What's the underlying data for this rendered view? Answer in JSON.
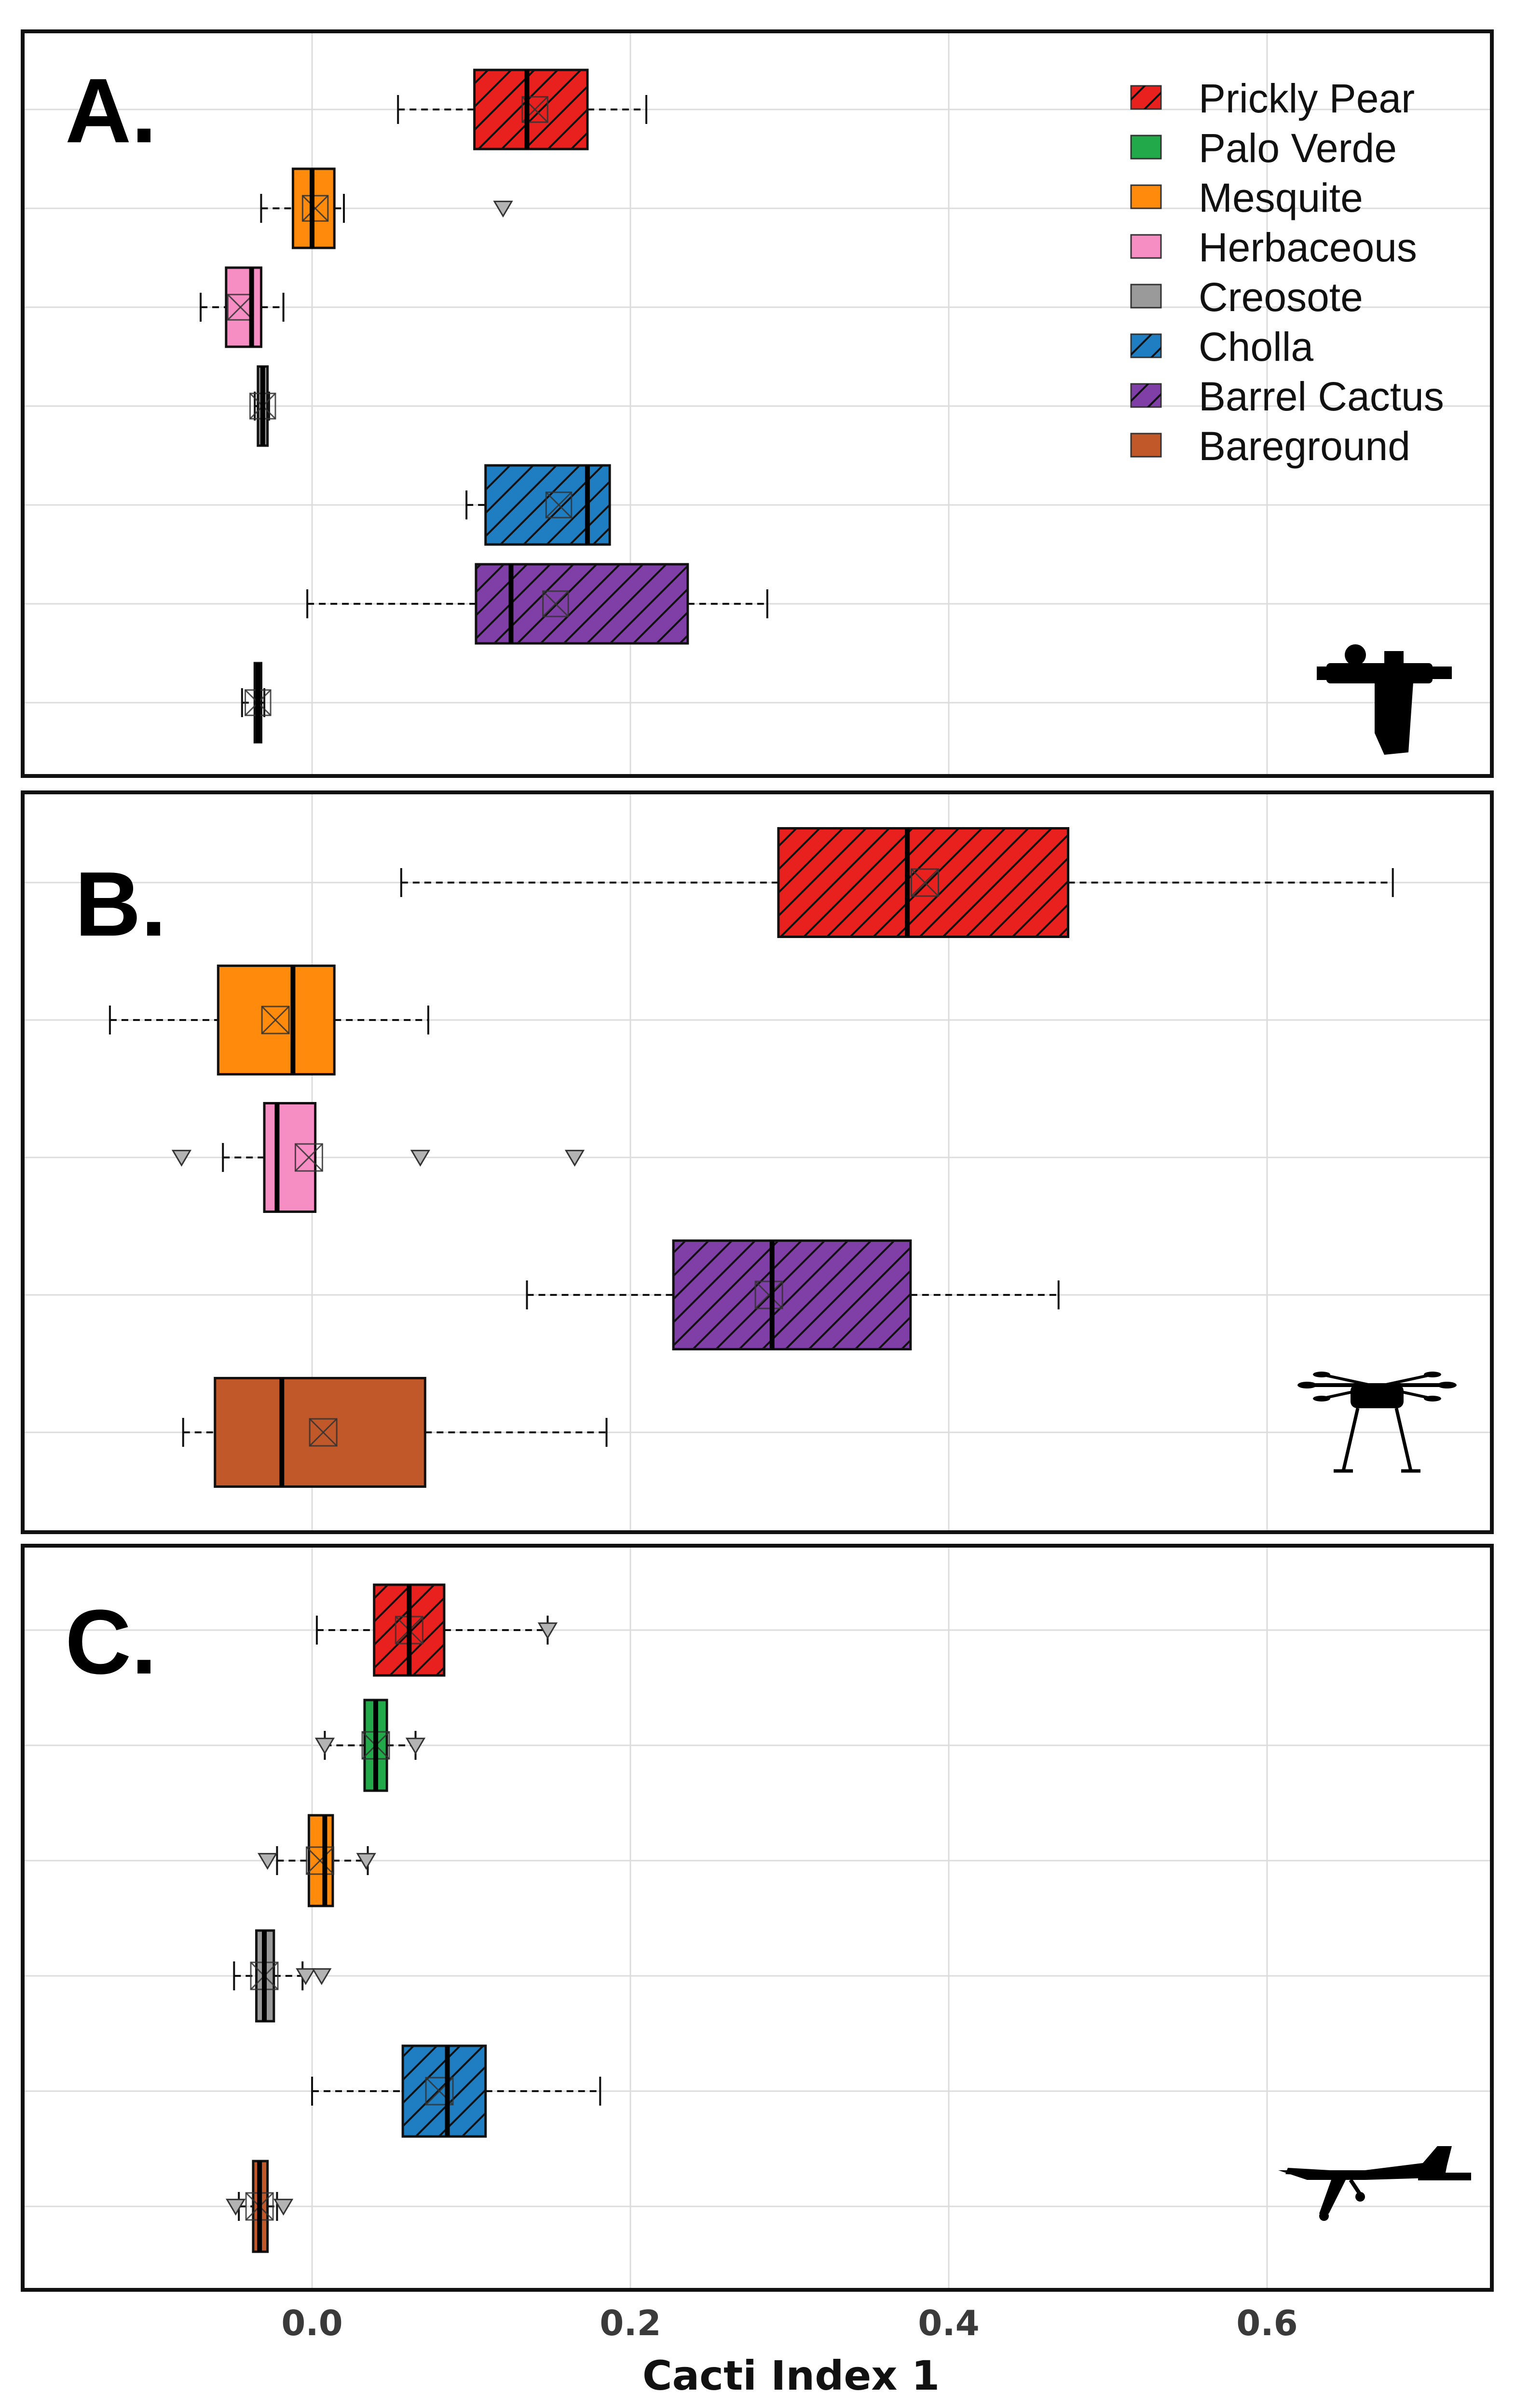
{
  "chart_data": {
    "type": "boxplot",
    "xlabel": "Cacti Index 1",
    "xlim": [
      -0.18,
      0.73
    ],
    "x_ticks": [
      {
        "value": 0.0,
        "label": "0.0"
      },
      {
        "value": 0.2,
        "label": "0.2"
      },
      {
        "value": 0.4,
        "label": "0.4"
      },
      {
        "value": 0.6,
        "label": "0.6"
      }
    ],
    "grid": true,
    "legend": {
      "placement": "top-right",
      "entries": [
        {
          "name": "Prickly Pear",
          "color": "#e8201e",
          "hatched": true
        },
        {
          "name": "Palo Verde",
          "color": "#22aa4a",
          "hatched": false
        },
        {
          "name": "Mesquite",
          "color": "#ff8a0c",
          "hatched": false
        },
        {
          "name": "Herbaceous",
          "color": "#f78ec3",
          "hatched": false
        },
        {
          "name": "Creosote",
          "color": "#9a9a9a",
          "hatched": false
        },
        {
          "name": "Cholla",
          "color": "#1f7ec1",
          "hatched": true
        },
        {
          "name": "Barrel Cactus",
          "color": "#7f3fa6",
          "hatched": true
        },
        {
          "name": "Bareground",
          "color": "#c0582a",
          "hatched": false
        }
      ]
    },
    "panels": [
      {
        "label": "A.",
        "platform_icon": "handheld-spectrometer-icon",
        "series": [
          {
            "name": "Prickly Pear",
            "whisker_low": 0.054,
            "q1": 0.102,
            "median": 0.135,
            "q3": 0.173,
            "whisker_high": 0.21,
            "mean": 0.14,
            "outliers": []
          },
          {
            "name": "Mesquite",
            "whisker_low": -0.032,
            "q1": -0.012,
            "median": 0.0,
            "q3": 0.014,
            "whisker_high": 0.02,
            "mean": 0.002,
            "outliers": [
              0.12
            ]
          },
          {
            "name": "Herbaceous",
            "whisker_low": -0.07,
            "q1": -0.054,
            "median": -0.038,
            "q3": -0.032,
            "whisker_high": -0.018,
            "mean": -0.045,
            "outliers": []
          },
          {
            "name": "Creosote",
            "whisker_low": -0.036,
            "q1": -0.034,
            "median": -0.031,
            "q3": -0.028,
            "whisker_high": -0.027,
            "mean": -0.031,
            "outliers": []
          },
          {
            "name": "Cholla",
            "whisker_low": 0.097,
            "q1": 0.109,
            "median": 0.173,
            "q3": 0.187,
            "whisker_high": 0.187,
            "mean": 0.155,
            "outliers": []
          },
          {
            "name": "Barrel Cactus",
            "whisker_low": -0.003,
            "q1": 0.103,
            "median": 0.125,
            "q3": 0.236,
            "whisker_high": 0.286,
            "mean": 0.153,
            "outliers": []
          },
          {
            "name": "Bareground",
            "whisker_low": -0.044,
            "q1": -0.036,
            "median": -0.034,
            "q3": -0.032,
            "whisker_high": -0.03,
            "mean": -0.034,
            "outliers": []
          }
        ]
      },
      {
        "label": "B.",
        "platform_icon": "drone-icon",
        "series": [
          {
            "name": "Prickly Pear",
            "whisker_low": 0.056,
            "q1": 0.293,
            "median": 0.374,
            "q3": 0.475,
            "whisker_high": 0.679,
            "mean": 0.385,
            "outliers": []
          },
          {
            "name": "Mesquite",
            "whisker_low": -0.127,
            "q1": -0.059,
            "median": -0.012,
            "q3": 0.014,
            "whisker_high": 0.073,
            "mean": -0.023,
            "outliers": []
          },
          {
            "name": "Herbaceous",
            "whisker_low": -0.056,
            "q1": -0.03,
            "median": -0.022,
            "q3": 0.002,
            "whisker_high": 0.002,
            "mean": -0.002,
            "outliers": [
              -0.082,
              0.068,
              0.165
            ]
          },
          {
            "name": "Barrel Cactus",
            "whisker_low": 0.135,
            "q1": 0.227,
            "median": 0.289,
            "q3": 0.376,
            "whisker_high": 0.469,
            "mean": 0.287,
            "outliers": []
          },
          {
            "name": "Bareground",
            "whisker_low": -0.081,
            "q1": -0.061,
            "median": -0.019,
            "q3": 0.071,
            "whisker_high": 0.185,
            "mean": 0.007,
            "outliers": []
          }
        ]
      },
      {
        "label": "C.",
        "platform_icon": "airplane-icon",
        "series": [
          {
            "name": "Prickly Pear",
            "whisker_low": 0.003,
            "q1": 0.039,
            "median": 0.061,
            "q3": 0.083,
            "whisker_high": 0.148,
            "mean": 0.061,
            "outliers": [
              0.148
            ]
          },
          {
            "name": "Palo Verde",
            "whisker_low": 0.008,
            "q1": 0.033,
            "median": 0.04,
            "q3": 0.047,
            "whisker_high": 0.065,
            "mean": 0.04,
            "outliers": [
              0.008,
              0.065
            ]
          },
          {
            "name": "Mesquite",
            "whisker_low": -0.022,
            "q1": -0.002,
            "median": 0.008,
            "q3": 0.013,
            "whisker_high": 0.035,
            "mean": 0.005,
            "outliers": [
              -0.028,
              0.034
            ]
          },
          {
            "name": "Creosote",
            "whisker_low": -0.049,
            "q1": -0.035,
            "median": -0.03,
            "q3": -0.024,
            "whisker_high": -0.006,
            "mean": -0.03,
            "outliers": [
              -0.004,
              0.006
            ]
          },
          {
            "name": "Cholla",
            "whisker_low": 0.0,
            "q1": 0.057,
            "median": 0.085,
            "q3": 0.109,
            "whisker_high": 0.181,
            "mean": 0.08,
            "outliers": []
          },
          {
            "name": "Bareground",
            "whisker_low": -0.046,
            "q1": -0.037,
            "median": -0.033,
            "q3": -0.028,
            "whisker_high": -0.022,
            "mean": -0.033,
            "outliers": [
              -0.048,
              -0.018
            ]
          }
        ]
      }
    ]
  }
}
